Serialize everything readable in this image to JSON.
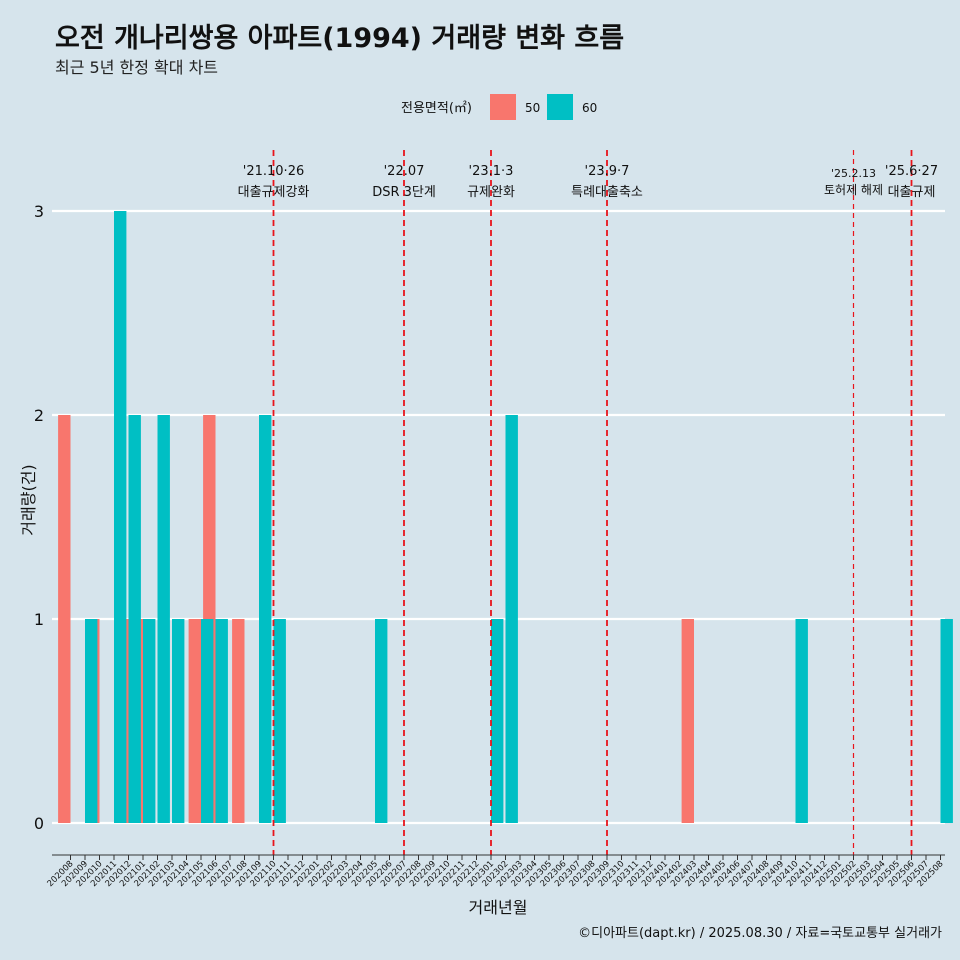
{
  "header": {
    "title": "오전 개나리쌍용 아파트(1994) 거래량 변화 흐름",
    "subtitle": "최근 5년 한정 확대 차트"
  },
  "footer": {
    "credit": "©디아파트(dapt.kr) / 2025.08.30 / 자료=국토교통부 실거래가"
  },
  "colors": {
    "background": "#d6e4ec",
    "series50": "#f8766d",
    "series60": "#00bfc4",
    "event_line": "#e8141b",
    "grid": "#ffffff"
  },
  "chart_data": {
    "type": "bar",
    "xlabel": "거래년월",
    "ylabel": "거래량(건)",
    "ylim": [
      0,
      3
    ],
    "yticks": [
      0,
      1,
      2,
      3
    ],
    "legend": {
      "title": "전용면적(㎡)",
      "position": "top"
    },
    "categories": [
      "202008",
      "202009",
      "202010",
      "202011",
      "202012",
      "202101",
      "202102",
      "202103",
      "202104",
      "202105",
      "202106",
      "202107",
      "202108",
      "202109",
      "202110",
      "202111",
      "202112",
      "202201",
      "202202",
      "202203",
      "202204",
      "202205",
      "202206",
      "202207",
      "202208",
      "202209",
      "202210",
      "202211",
      "202212",
      "202301",
      "202302",
      "202303",
      "202304",
      "202305",
      "202306",
      "202307",
      "202308",
      "202309",
      "202310",
      "202311",
      "202312",
      "202401",
      "202402",
      "202403",
      "202404",
      "202405",
      "202406",
      "202407",
      "202408",
      "202409",
      "202410",
      "202411",
      "202412",
      "202501",
      "202502",
      "202503",
      "202504",
      "202505",
      "202506",
      "202507",
      "202508"
    ],
    "series": [
      {
        "name": "50",
        "values": [
          2,
          0,
          1,
          0,
          1,
          1,
          0,
          0,
          0,
          1,
          2,
          0,
          1,
          0,
          0,
          0,
          0,
          0,
          0,
          0,
          0,
          0,
          0,
          0,
          0,
          0,
          0,
          0,
          0,
          0,
          0,
          0,
          0,
          0,
          0,
          0,
          0,
          0,
          0,
          0,
          0,
          0,
          0,
          1,
          0,
          0,
          0,
          0,
          0,
          0,
          0,
          0,
          0,
          0,
          0,
          0,
          0,
          0,
          0,
          0,
          0
        ]
      },
      {
        "name": "60",
        "values": [
          0,
          1,
          0,
          3,
          2,
          1,
          2,
          1,
          0,
          1,
          1,
          0,
          0,
          2,
          1,
          0,
          0,
          0,
          0,
          0,
          0,
          1,
          0,
          0,
          0,
          0,
          0,
          0,
          0,
          1,
          2,
          0,
          0,
          0,
          0,
          0,
          0,
          0,
          0,
          0,
          0,
          0,
          0,
          0,
          0,
          0,
          0,
          0,
          0,
          0,
          1,
          0,
          0,
          0,
          0,
          0,
          0,
          0,
          0,
          0,
          1
        ]
      }
    ],
    "events": [
      {
        "date": "'21.10·26",
        "label": "대출규제강화",
        "month": "202110"
      },
      {
        "date": "'22.07",
        "label": "DSR 3단계",
        "month": "202207"
      },
      {
        "date": "'23.1·3",
        "label": "규제완화",
        "month": "202301"
      },
      {
        "date": "'23.9·7",
        "label": "특례대출축소",
        "month": "202309"
      },
      {
        "date": "'25.2.13",
        "label": "토허제 해제",
        "month": "202502"
      },
      {
        "date": "'25.6·27",
        "label": "대출규제",
        "month": "202506"
      }
    ]
  }
}
